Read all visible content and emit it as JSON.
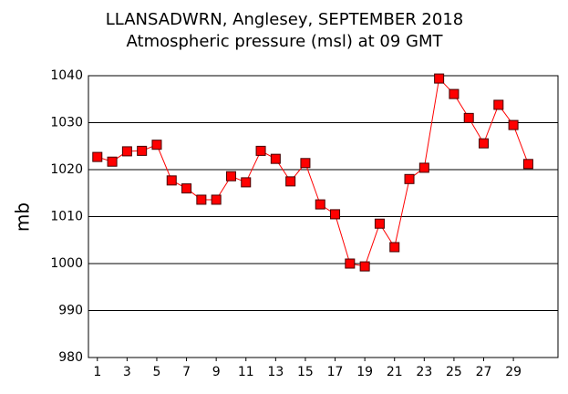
{
  "chart_data": {
    "type": "line",
    "title": "LLANSADWRN, Anglesey,  SEPTEMBER 2018",
    "subtitle": "Atmospheric pressure  (msl) at 09 GMT",
    "y_label": "mb",
    "x": [
      1,
      2,
      3,
      4,
      5,
      6,
      7,
      8,
      9,
      10,
      11,
      12,
      13,
      14,
      15,
      16,
      17,
      18,
      19,
      20,
      21,
      22,
      23,
      24,
      25,
      26,
      27,
      28,
      29,
      30
    ],
    "series": [
      {
        "color": "#ff0000",
        "values": [
          1022.7,
          1021.7,
          1023.9,
          1024,
          1025.3,
          1017.7,
          1016,
          1013.6,
          1013.6,
          1018.6,
          1017.3,
          1024,
          1022.3,
          1017.5,
          1021.4,
          1012.6,
          1010.5,
          1000,
          999.4,
          1008.5,
          1003.5,
          1018,
          1020.4,
          1039.4,
          1036.1,
          1031,
          1025.6,
          1033.8,
          1029.5,
          1021.2
        ]
      }
    ],
    "xlim": [
      0.4,
      32
    ],
    "xticks": [
      1,
      3,
      5,
      7,
      9,
      11,
      13,
      15,
      17,
      19,
      21,
      23,
      25,
      27,
      29
    ],
    "ylim": [
      980,
      1040
    ],
    "yticks": [
      980,
      990,
      1000,
      1010,
      1020,
      1030,
      1040
    ],
    "grid": true
  }
}
